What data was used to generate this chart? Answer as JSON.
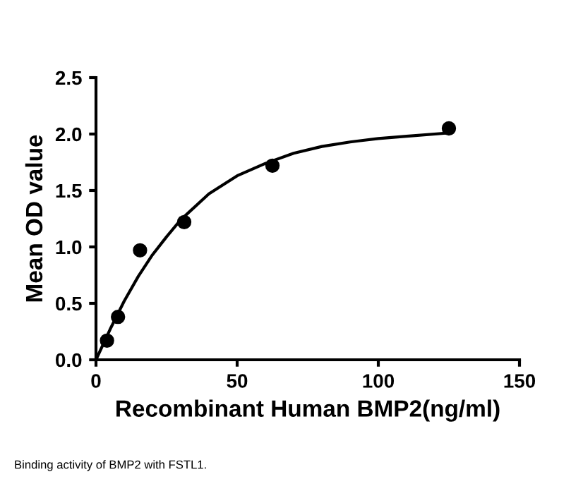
{
  "chart_data": {
    "type": "scatter",
    "xlabel": "Recombinant Human BMP2(ng/ml)",
    "ylabel": "Mean OD value",
    "series": [
      {
        "color": "#000000",
        "marker": "circle",
        "x": [
          3.9,
          7.8,
          15.6,
          31.25,
          62.5,
          125
        ],
        "values": [
          0.17,
          0.38,
          0.97,
          1.22,
          1.72,
          2.05
        ]
      },
      {
        "type": "line",
        "color": "#000000",
        "marker": "none",
        "x": [
          0,
          5,
          10,
          15,
          20,
          25,
          30,
          40,
          50,
          60,
          70,
          80,
          90,
          100,
          110,
          125
        ],
        "values": [
          0,
          0.27,
          0.52,
          0.74,
          0.93,
          1.09,
          1.24,
          1.47,
          1.63,
          1.74,
          1.83,
          1.89,
          1.93,
          1.96,
          1.98,
          2.01
        ]
      }
    ],
    "xlim": [
      0,
      150
    ],
    "xticks": [
      0,
      50,
      100,
      150
    ],
    "ylim": [
      0,
      2.5
    ],
    "yticks": [
      {
        "value": 0,
        "label": "0.0"
      },
      {
        "value": 0.5,
        "label": "0.5"
      },
      {
        "value": 1,
        "label": "1.0"
      },
      {
        "value": 1.5,
        "label": "1.5"
      },
      {
        "value": 2,
        "label": "2.0"
      },
      {
        "value": 2.5,
        "label": "2.5"
      }
    ],
    "grid": false,
    "legend": false,
    "annotations": [
      "Binding activity of BMP2 with FSTL1."
    ]
  }
}
